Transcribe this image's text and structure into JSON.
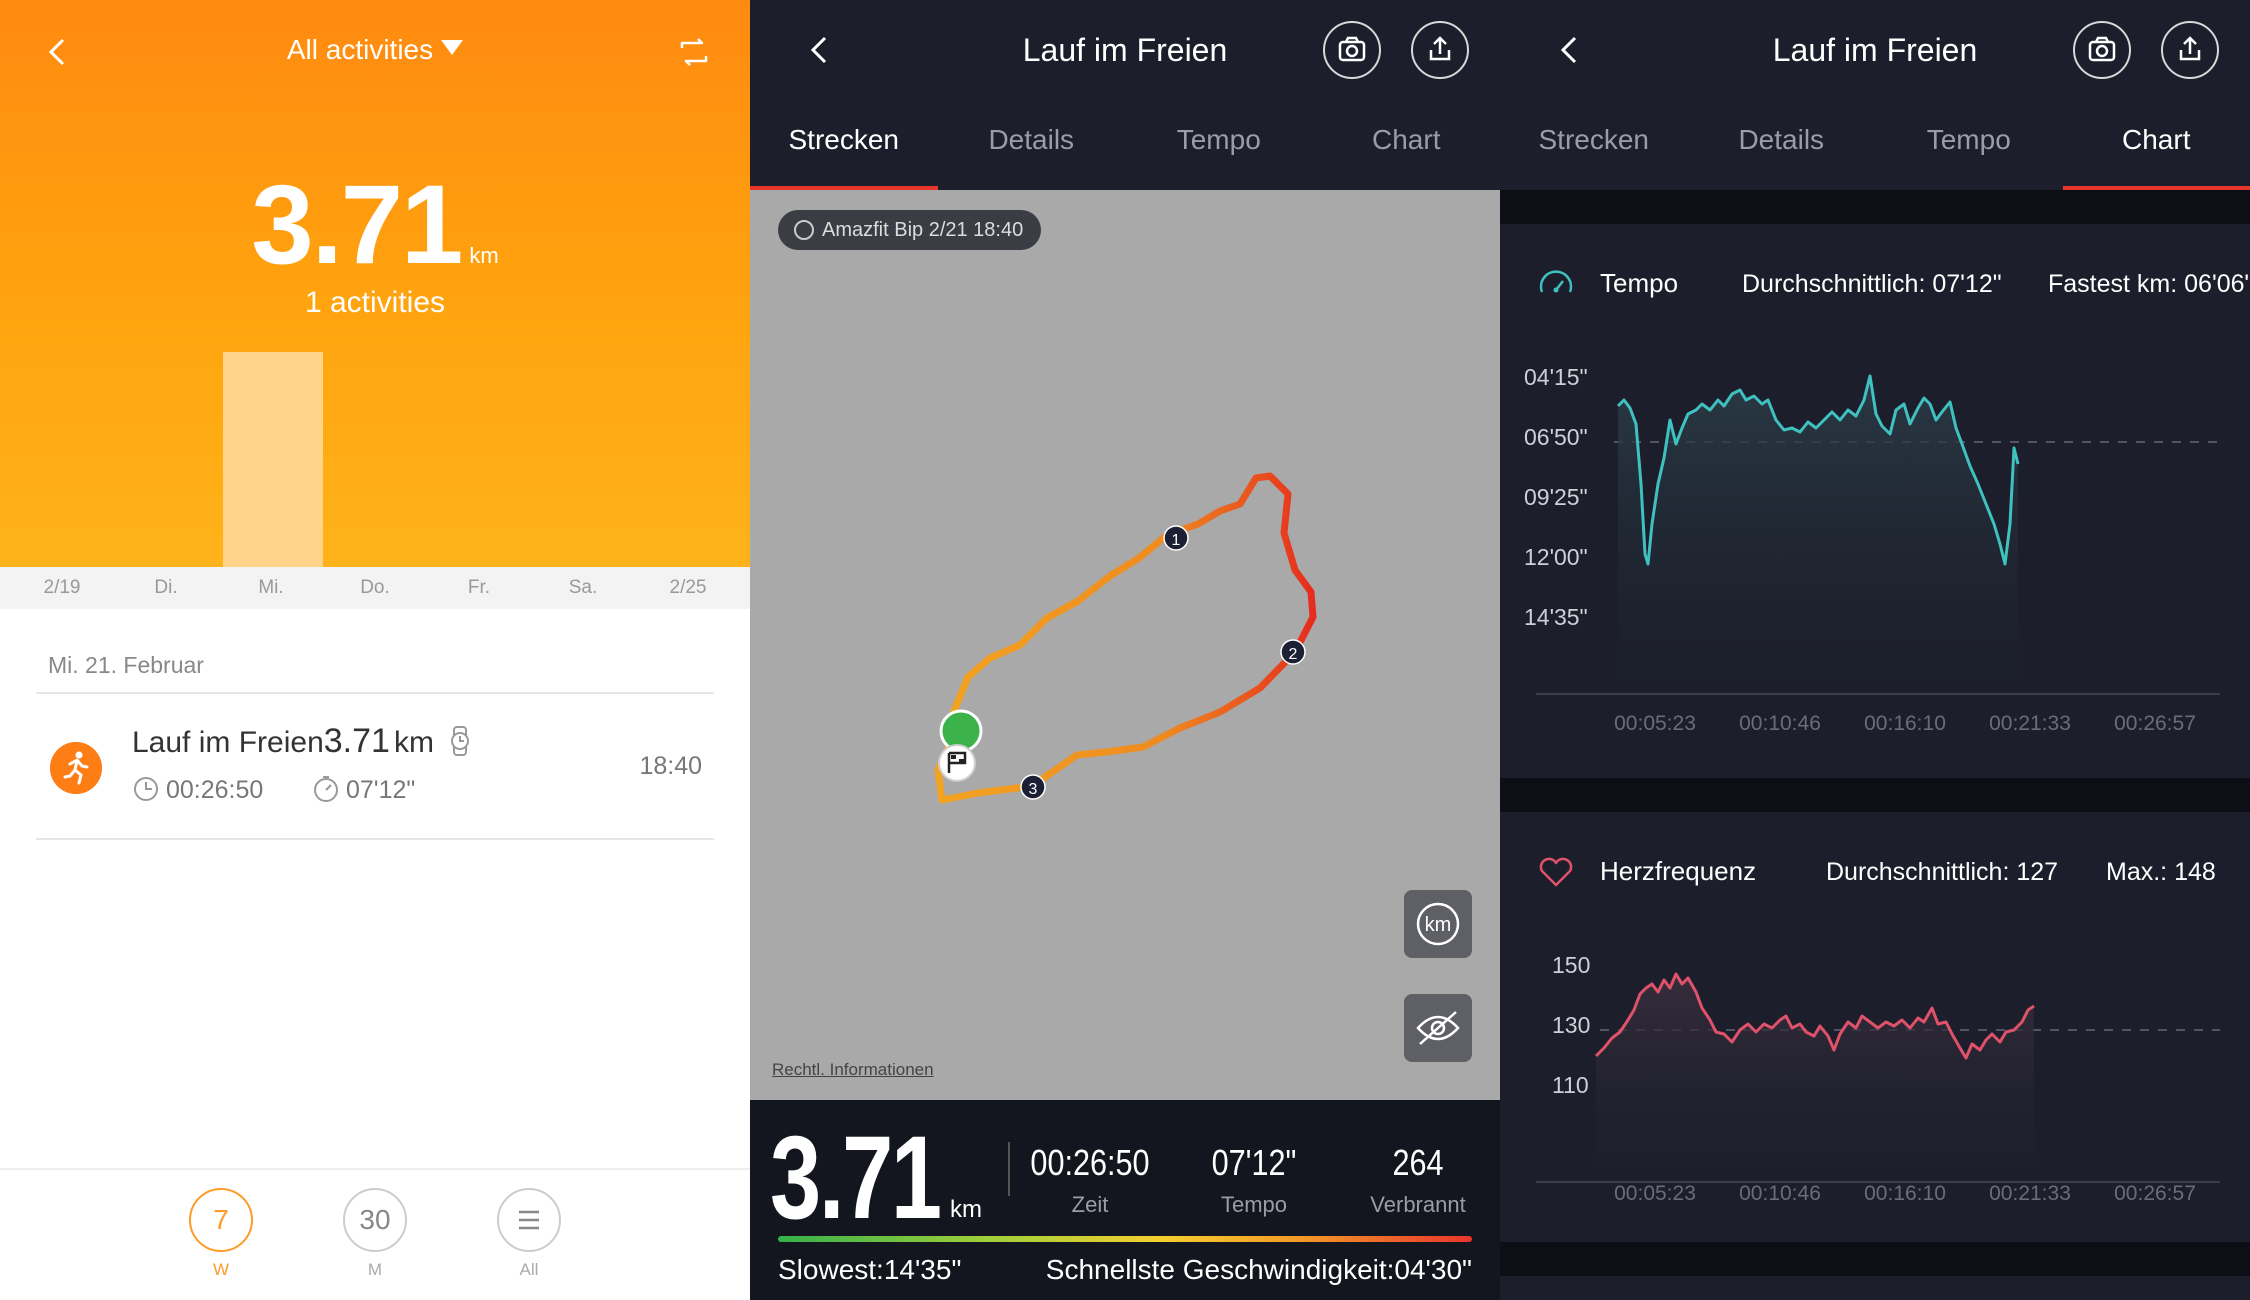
{
  "panel_summary": {
    "filter_label": "All activities",
    "total_distance": "3.71",
    "distance_unit": "km",
    "activities_count": "1 activities",
    "weekday_axis": [
      "2/19",
      "Di.",
      "Mi.",
      "Do.",
      "Fr.",
      "Sa.",
      "2/25"
    ],
    "bar_value_km": 3.71,
    "date_header": "Mi. 21. Februar",
    "activity": {
      "name": "Lauf im Freien",
      "distance": "3.71",
      "unit": "km",
      "duration": "00:26:50",
      "pace": "07'12\"",
      "time": "18:40"
    },
    "bottom_tabs": [
      {
        "number": "7",
        "label": "W",
        "active": true
      },
      {
        "number": "30",
        "label": "M",
        "active": false
      },
      {
        "number": "",
        "label": "All",
        "active": false
      }
    ]
  },
  "panel_map": {
    "title": "Lauf im Freien",
    "tabs": [
      "Strecken",
      "Details",
      "Tempo",
      "Chart"
    ],
    "active_tab": "Strecken",
    "device_badge": "Amazfit Bip  2/21 18:40",
    "legal_link": "Rechtl. Informationen",
    "km_button": "km",
    "markers": [
      "1",
      "2",
      "3"
    ],
    "distance": "3.71",
    "distance_unit": "km",
    "time_value": "00:26:50",
    "time_label": "Zeit",
    "pace_value": "07'12\"",
    "pace_label": "Tempo",
    "calories_value": "264",
    "calories_label": "Verbrannt",
    "slowest": "Slowest:14'35\"",
    "fastest": "Schnellste Geschwindigkeit:04'30\""
  },
  "panel_chart": {
    "title": "Lauf im Freien",
    "tabs": [
      "Strecken",
      "Details",
      "Tempo",
      "Chart"
    ],
    "active_tab": "Chart",
    "colors": {
      "pace": "#3fc1c0",
      "heart": "#e0516a",
      "accent": "#e8352c"
    },
    "pace_card": {
      "title": "Tempo",
      "average": "Durchschnittlich: 07'12\"",
      "fastest": "Fastest km: 06'06\"",
      "y_ticks": [
        "04'15\"",
        "06'50\"",
        "09'25\"",
        "12'00\"",
        "14'35\""
      ],
      "x_ticks": [
        "00:05:23",
        "00:10:46",
        "00:16:10",
        "00:21:33",
        "00:26:57"
      ]
    },
    "heart_card": {
      "title": "Herzfrequenz",
      "average": "Durchschnittlich: 127",
      "max": "Max.: 148",
      "y_ticks": [
        "150",
        "130",
        "110"
      ],
      "x_ticks": [
        "00:05:23",
        "00:10:46",
        "00:16:10",
        "00:21:33",
        "00:26:57"
      ]
    }
  }
}
